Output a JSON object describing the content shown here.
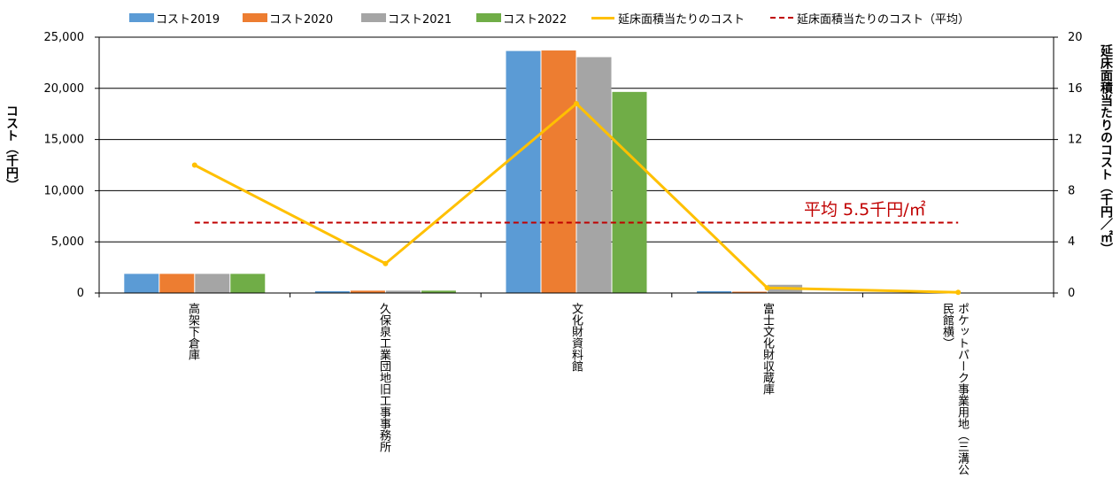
{
  "chart_data": {
    "type": "bar",
    "categories": [
      "高架下倉庫",
      "久保泉工業団地旧工事事務所",
      "文化財資料館",
      "富士文化財収蔵庫",
      "ポケットパーク事業用地（三溝公民館横）"
    ],
    "series": [
      {
        "name": "コスト2019",
        "color": "#5B9BD5",
        "values": [
          1870,
          180,
          23650,
          180,
          0
        ]
      },
      {
        "name": "コスト2020",
        "color": "#ED7D31",
        "values": [
          1870,
          230,
          23700,
          130,
          0
        ]
      },
      {
        "name": "コスト2021",
        "color": "#A5A5A5",
        "values": [
          1870,
          230,
          23050,
          800,
          0
        ]
      },
      {
        "name": "コスト2022",
        "color": "#70AD47",
        "values": [
          1870,
          230,
          19650,
          0,
          0
        ]
      }
    ],
    "line_series": {
      "name": "延床面積当たりのコスト",
      "color": "#FFC000",
      "axis": "right",
      "values": [
        10.0,
        2.3,
        14.8,
        0.4,
        0.05
      ]
    },
    "average_line": {
      "name": "延床面積当たりのコスト（平均）",
      "color": "#C00000",
      "axis": "right",
      "value": 5.5
    },
    "annotation": "平均 5.5千円/㎡",
    "ylabel": "コスト（千円）",
    "ylabel_right": "延床面積当たりのコスト（千円／㎡）",
    "ylim": [
      0,
      25000
    ],
    "ylim_right": [
      0,
      20
    ],
    "yticks": [
      "0",
      "5,000",
      "10,000",
      "15,000",
      "20,000",
      "25,000"
    ],
    "yticks_right": [
      "0",
      "4",
      "8",
      "12",
      "16",
      "20"
    ],
    "grid": true,
    "legend_position": "top"
  }
}
